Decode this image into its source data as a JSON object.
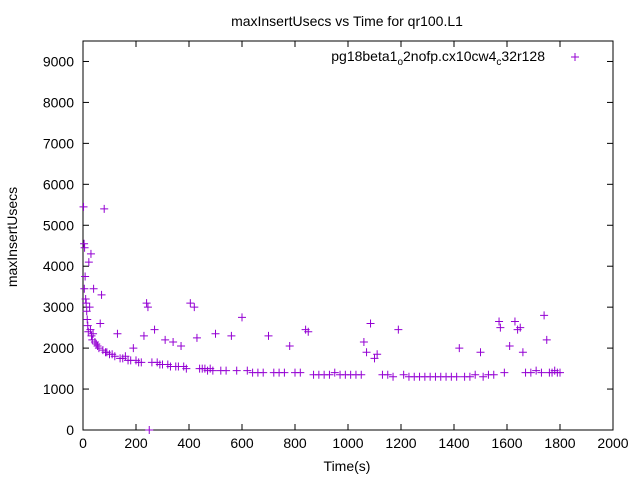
{
  "chart_data": {
    "type": "scatter",
    "title": "maxInsertUsecs vs Time for qr100.L1",
    "xlabel": "Time(s)",
    "ylabel": "maxInsertUsecs",
    "xlim": [
      0,
      2000
    ],
    "ylim": [
      0,
      9500
    ],
    "x_ticks": [
      0,
      200,
      400,
      600,
      800,
      1000,
      1200,
      1400,
      1600,
      1800,
      2000
    ],
    "y_ticks": [
      0,
      1000,
      2000,
      3000,
      4000,
      5000,
      6000,
      7000,
      8000,
      9000
    ],
    "grid": false,
    "legend_position": "top-right",
    "marker": "plus",
    "series": [
      {
        "name_parts": [
          "pg18beta1",
          "o",
          "2nofp.cx10cw4",
          "c",
          "32r128"
        ],
        "color": "#9400d3",
        "points": [
          [
            2,
            5450
          ],
          [
            4,
            4550
          ],
          [
            6,
            4450
          ],
          [
            8,
            3750
          ],
          [
            5,
            3450
          ],
          [
            10,
            3200
          ],
          [
            12,
            3100
          ],
          [
            14,
            2900
          ],
          [
            16,
            2700
          ],
          [
            18,
            2550
          ],
          [
            20,
            2400
          ],
          [
            22,
            4100
          ],
          [
            25,
            3000
          ],
          [
            28,
            2450
          ],
          [
            30,
            4300
          ],
          [
            32,
            2300
          ],
          [
            35,
            2200
          ],
          [
            38,
            2350
          ],
          [
            40,
            3450
          ],
          [
            45,
            2150
          ],
          [
            50,
            2100
          ],
          [
            55,
            2050
          ],
          [
            60,
            2000
          ],
          [
            65,
            2600
          ],
          [
            70,
            3300
          ],
          [
            75,
            1950
          ],
          [
            80,
            5400
          ],
          [
            85,
            1900
          ],
          [
            90,
            1900
          ],
          [
            100,
            1850
          ],
          [
            110,
            1850
          ],
          [
            120,
            1800
          ],
          [
            130,
            2350
          ],
          [
            140,
            1750
          ],
          [
            150,
            1750
          ],
          [
            160,
            1800
          ],
          [
            170,
            1700
          ],
          [
            180,
            1700
          ],
          [
            190,
            2000
          ],
          [
            200,
            1700
          ],
          [
            210,
            1650
          ],
          [
            220,
            1650
          ],
          [
            230,
            2300
          ],
          [
            240,
            3100
          ],
          [
            245,
            3000
          ],
          [
            250,
            0
          ],
          [
            260,
            1650
          ],
          [
            270,
            2450
          ],
          [
            280,
            1650
          ],
          [
            290,
            1600
          ],
          [
            300,
            1600
          ],
          [
            310,
            2200
          ],
          [
            320,
            1600
          ],
          [
            330,
            1550
          ],
          [
            340,
            2150
          ],
          [
            350,
            1550
          ],
          [
            360,
            1550
          ],
          [
            370,
            2050
          ],
          [
            380,
            1550
          ],
          [
            390,
            1500
          ],
          [
            405,
            3100
          ],
          [
            420,
            3000
          ],
          [
            430,
            2250
          ],
          [
            440,
            1500
          ],
          [
            450,
            1500
          ],
          [
            460,
            1500
          ],
          [
            470,
            1450
          ],
          [
            480,
            1500
          ],
          [
            490,
            1450
          ],
          [
            500,
            2350
          ],
          [
            520,
            1450
          ],
          [
            540,
            1450
          ],
          [
            560,
            2300
          ],
          [
            580,
            1450
          ],
          [
            600,
            2750
          ],
          [
            620,
            1450
          ],
          [
            640,
            1400
          ],
          [
            660,
            1400
          ],
          [
            680,
            1400
          ],
          [
            700,
            2300
          ],
          [
            720,
            1400
          ],
          [
            740,
            1400
          ],
          [
            760,
            1400
          ],
          [
            780,
            2050
          ],
          [
            800,
            1400
          ],
          [
            820,
            1400
          ],
          [
            840,
            2450
          ],
          [
            850,
            2400
          ],
          [
            870,
            1350
          ],
          [
            890,
            1350
          ],
          [
            910,
            1350
          ],
          [
            930,
            1350
          ],
          [
            950,
            1400
          ],
          [
            970,
            1350
          ],
          [
            990,
            1350
          ],
          [
            1010,
            1350
          ],
          [
            1030,
            1350
          ],
          [
            1050,
            1350
          ],
          [
            1060,
            2150
          ],
          [
            1070,
            1900
          ],
          [
            1085,
            2600
          ],
          [
            1100,
            1750
          ],
          [
            1110,
            1850
          ],
          [
            1130,
            1350
          ],
          [
            1150,
            1350
          ],
          [
            1170,
            1300
          ],
          [
            1190,
            2450
          ],
          [
            1210,
            1350
          ],
          [
            1230,
            1300
          ],
          [
            1250,
            1300
          ],
          [
            1270,
            1300
          ],
          [
            1290,
            1300
          ],
          [
            1310,
            1300
          ],
          [
            1330,
            1300
          ],
          [
            1350,
            1300
          ],
          [
            1370,
            1300
          ],
          [
            1390,
            1300
          ],
          [
            1410,
            1300
          ],
          [
            1420,
            2000
          ],
          [
            1440,
            1300
          ],
          [
            1460,
            1300
          ],
          [
            1480,
            1350
          ],
          [
            1500,
            1900
          ],
          [
            1510,
            1300
          ],
          [
            1530,
            1350
          ],
          [
            1550,
            1350
          ],
          [
            1570,
            2650
          ],
          [
            1575,
            2500
          ],
          [
            1590,
            1400
          ],
          [
            1610,
            2050
          ],
          [
            1630,
            2650
          ],
          [
            1640,
            2450
          ],
          [
            1650,
            2500
          ],
          [
            1660,
            1900
          ],
          [
            1670,
            1400
          ],
          [
            1690,
            1400
          ],
          [
            1710,
            1450
          ],
          [
            1730,
            1400
          ],
          [
            1740,
            2800
          ],
          [
            1750,
            2200
          ],
          [
            1760,
            1400
          ],
          [
            1770,
            1400
          ],
          [
            1780,
            1450
          ],
          [
            1790,
            1400
          ],
          [
            1800,
            1400
          ]
        ]
      }
    ]
  }
}
